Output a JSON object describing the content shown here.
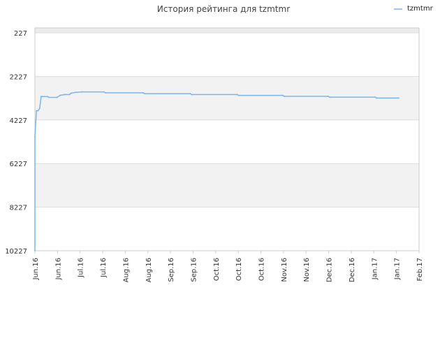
{
  "chart_data": {
    "type": "line",
    "title": "История рейтинга для tzmtmr",
    "xlabel": "",
    "ylabel": "",
    "y_inverted": true,
    "ylim": [
      227,
      10227
    ],
    "y_ticks": [
      "227",
      "2227",
      "4227",
      "6227",
      "8227",
      "10227"
    ],
    "x_ticks": [
      "Jun.16",
      "Jun.16",
      "Jul.16",
      "Jul.16",
      "Aug.16",
      "Aug.16",
      "Sep.16",
      "Sep.16",
      "Oct.16",
      "Oct.16",
      "Oct.16",
      "Nov.16",
      "Nov.16",
      "Dec.16",
      "Dec.16",
      "Jan.17",
      "Jan.17",
      "Feb.17"
    ],
    "x_start": "2016-06-01",
    "x_end": "2017-02-01",
    "grid": true,
    "legend_position": "top-right",
    "series": [
      {
        "name": "tzmtmr",
        "color": "#7cb5ec",
        "points": [
          {
            "x": "2016-06-01",
            "y": 10227
          },
          {
            "x": "2016-06-01",
            "y": 5000
          },
          {
            "x": "2016-06-02",
            "y": 3800
          },
          {
            "x": "2016-06-03",
            "y": 3800
          },
          {
            "x": "2016-06-04",
            "y": 3700
          },
          {
            "x": "2016-06-05",
            "y": 3150
          },
          {
            "x": "2016-06-09",
            "y": 3150
          },
          {
            "x": "2016-06-10",
            "y": 3190
          },
          {
            "x": "2016-06-15",
            "y": 3190
          },
          {
            "x": "2016-06-17",
            "y": 3100
          },
          {
            "x": "2016-06-20",
            "y": 3060
          },
          {
            "x": "2016-06-23",
            "y": 3060
          },
          {
            "x": "2016-06-24",
            "y": 3000
          },
          {
            "x": "2016-06-27",
            "y": 2960
          },
          {
            "x": "2016-07-01",
            "y": 2940
          },
          {
            "x": "2016-07-15",
            "y": 2940
          },
          {
            "x": "2016-07-16",
            "y": 2980
          },
          {
            "x": "2016-08-09",
            "y": 2980
          },
          {
            "x": "2016-08-10",
            "y": 3020
          },
          {
            "x": "2016-09-08",
            "y": 3020
          },
          {
            "x": "2016-09-09",
            "y": 3060
          },
          {
            "x": "2016-10-08",
            "y": 3060
          },
          {
            "x": "2016-10-09",
            "y": 3100
          },
          {
            "x": "2016-11-06",
            "y": 3100
          },
          {
            "x": "2016-11-07",
            "y": 3140
          },
          {
            "x": "2016-12-05",
            "y": 3140
          },
          {
            "x": "2016-12-06",
            "y": 3180
          },
          {
            "x": "2017-01-04",
            "y": 3180
          },
          {
            "x": "2017-01-05",
            "y": 3220
          },
          {
            "x": "2017-01-19",
            "y": 3220
          }
        ]
      }
    ]
  }
}
